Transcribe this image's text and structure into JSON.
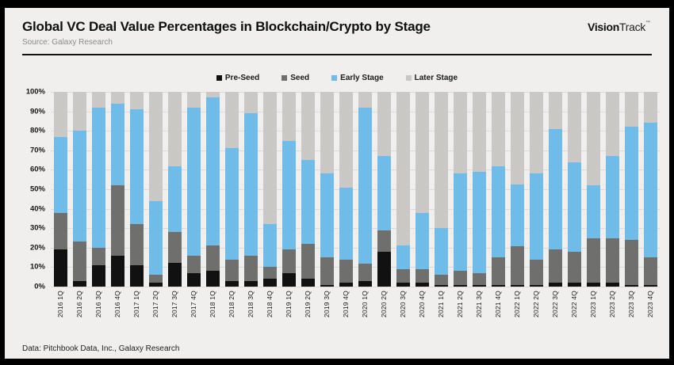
{
  "header": {
    "title": "Global VC Deal Value Percentages in Blockchain/Crypto by Stage",
    "source": "Source: Galaxy Research",
    "logo_bold": "Vision",
    "logo_light": "Track",
    "logo_tm": "™"
  },
  "footer": {
    "note": "Data: Pitchbook Data, Inc., Galaxy Research"
  },
  "colors": {
    "page_background": "#f0efed",
    "frame": "#000000",
    "divider": "#121212",
    "gridline": "#dbdad6"
  },
  "chart_data": {
    "type": "bar",
    "subtype": "stacked-100-percent",
    "title": "Global VC Deal Value Percentages in Blockchain/Crypto by Stage",
    "xlabel": "",
    "ylabel": "",
    "ylim": [
      0,
      100
    ],
    "grid": true,
    "legend_position": "top-center",
    "y_ticks": [
      "100%",
      "90%",
      "80%",
      "70%",
      "60%",
      "50%",
      "40%",
      "30%",
      "20%",
      "10%",
      "0%"
    ],
    "categories": [
      "2016 1Q",
      "2016 2Q",
      "2016 3Q",
      "2016 4Q",
      "2017 1Q",
      "2017 2Q",
      "2017 3Q",
      "2017 4Q",
      "2018 1Q",
      "2018 2Q",
      "2018 3Q",
      "2018 4Q",
      "2019 1Q",
      "2019 2Q",
      "2019 3Q",
      "2019 4Q",
      "2020 1Q",
      "2020 2Q",
      "2020 3Q",
      "2020 4Q",
      "2021 1Q",
      "2021 2Q",
      "2021 3Q",
      "2021 4Q",
      "2022 1Q",
      "2022 2Q",
      "2022 3Q",
      "2022 4Q",
      "2023 1Q",
      "2023 2Q",
      "2023 3Q",
      "2023 4Q"
    ],
    "series": [
      {
        "name": "Pre-Seed",
        "color": "#111111",
        "values": [
          19,
          3,
          11,
          16,
          11,
          2,
          12,
          7,
          8,
          3,
          3,
          4,
          7,
          4,
          1,
          2,
          3,
          18,
          2,
          2,
          1,
          1,
          1,
          1,
          1,
          1,
          2,
          2,
          2,
          2,
          1,
          1
        ]
      },
      {
        "name": "Seed",
        "color": "#6f6f6e",
        "values": [
          19,
          20,
          9,
          36,
          21,
          4,
          16,
          9,
          13,
          11,
          13,
          6,
          12,
          18,
          14,
          12,
          9,
          11,
          7,
          7,
          5,
          7,
          6,
          14,
          20,
          13,
          17,
          16,
          23,
          23,
          23,
          14
        ]
      },
      {
        "name": "Early Stage",
        "color": "#6fbce9",
        "values": [
          39,
          57,
          72,
          42,
          59,
          38,
          34,
          76,
          76,
          57,
          73,
          22,
          56,
          43,
          43,
          37,
          80,
          38,
          12,
          29,
          24,
          50,
          52,
          47,
          32,
          44,
          62,
          46,
          27,
          42,
          58,
          69
        ]
      },
      {
        "name": "Later Stage",
        "color": "#c9c8c5",
        "values": [
          23,
          20,
          8,
          6,
          9,
          56,
          38,
          8,
          3,
          29,
          11,
          68,
          25,
          35,
          42,
          49,
          8,
          33,
          79,
          62,
          70,
          42,
          41,
          38,
          48,
          42,
          19,
          36,
          48,
          33,
          18,
          16
        ]
      }
    ]
  }
}
